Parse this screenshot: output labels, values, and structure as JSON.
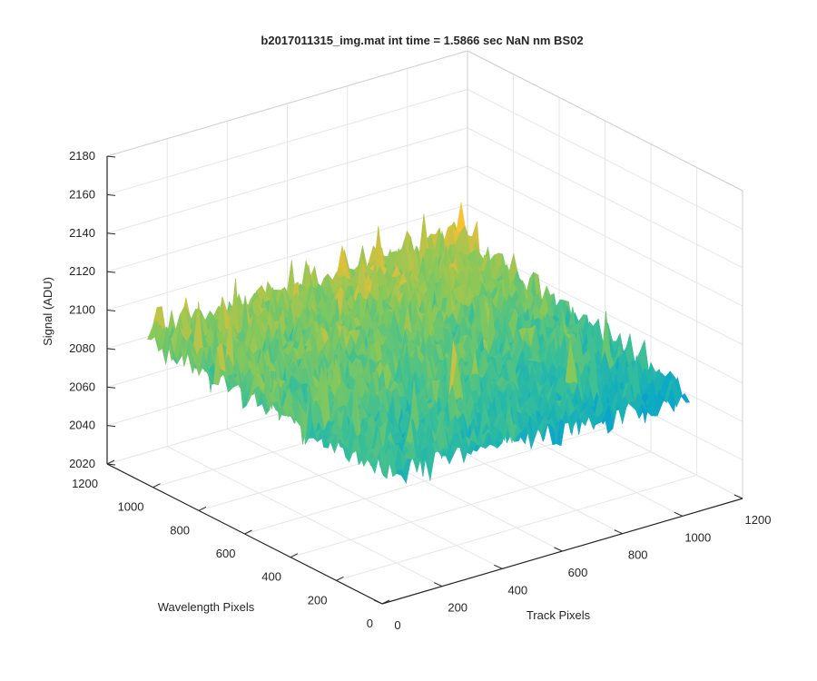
{
  "chart_data": {
    "type": "surface",
    "title": "b2017011315_img.mat int time = 1.5866 sec  NaN nm BS02",
    "xlabel": "Track Pixels",
    "ylabel": "Wavelength Pixels",
    "zlabel": "Signal (ADU)",
    "xlim": [
      0,
      1200
    ],
    "ylim": [
      0,
      1200
    ],
    "zlim": [
      2020,
      2180
    ],
    "x_ticks": [
      0,
      200,
      400,
      600,
      800,
      1000,
      1200
    ],
    "y_ticks": [
      0,
      200,
      400,
      600,
      800,
      1000,
      1200
    ],
    "z_ticks": [
      2020,
      2040,
      2060,
      2080,
      2100,
      2120,
      2140,
      2160,
      2180
    ],
    "x_tick_labels": [
      "0",
      "200",
      "400",
      "600",
      "800",
      "1000",
      "1200"
    ],
    "y_tick_labels": [
      "0",
      "200",
      "400",
      "600",
      "800",
      "1000",
      "1200"
    ],
    "z_tick_labels": [
      "2020",
      "2040",
      "2060",
      "2080",
      "2100",
      "2120",
      "2140",
      "2160",
      "2180"
    ],
    "grid": true,
    "colormap": "parula",
    "surface_extent": {
      "x": [
        0,
        1024
      ],
      "y": [
        0,
        1024
      ]
    },
    "mean_signal_corners": {
      "x0_y1024": 2098,
      "x1024_y1024": 2103,
      "x0_y0": 2090,
      "x1024_y0": 2082
    },
    "noise_amplitude": 10
  }
}
